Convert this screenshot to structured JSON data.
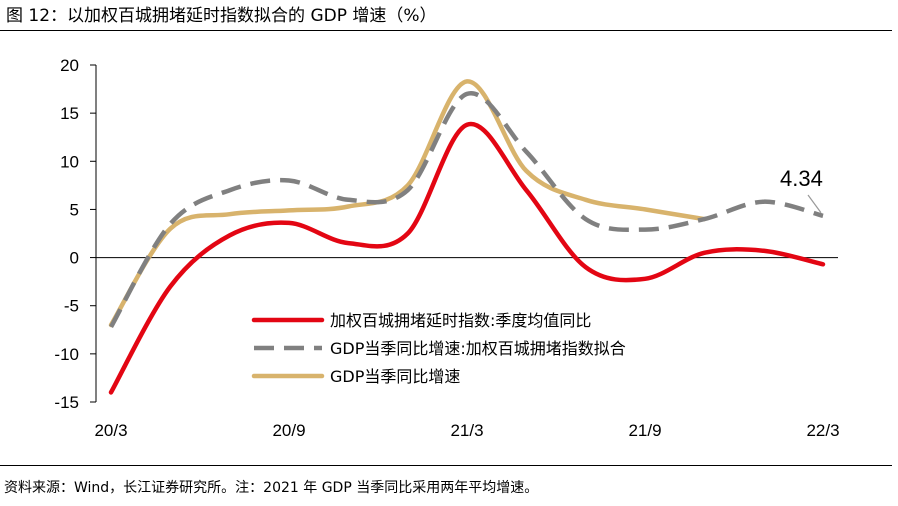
{
  "figure": {
    "title": "图 12：以加权百城拥堵延时指数拟合的 GDP 增速（%）",
    "source": "资料来源：Wind，长江证券研究所。注：2021 年 GDP 当季同比采用两年平均增速。"
  },
  "chart_data": {
    "type": "line",
    "title": "以加权百城拥堵延时指数拟合的 GDP 增速（%）",
    "xlabel": "",
    "ylabel": "",
    "ylim": [
      -15,
      20
    ],
    "yticks": [
      20,
      15,
      10,
      5,
      0,
      -5,
      -10,
      -15
    ],
    "ytick_labels": [
      "20",
      "15",
      "10",
      "5",
      "0",
      "-5",
      "-10",
      "-15"
    ],
    "x_tick_labels": [
      "20/3",
      "20/9",
      "21/3",
      "21/9",
      "22/3"
    ],
    "x_tick_index": [
      0,
      6,
      12,
      18,
      24
    ],
    "series": [
      {
        "name": "加权百城拥堵延时指数:季度均值同比",
        "color": "#e30613",
        "dash": "solid",
        "x": [
          0,
          2,
          4,
          6,
          8,
          10,
          12,
          14,
          16,
          18,
          20,
          22,
          24
        ],
        "values": [
          -14,
          -3,
          2.3,
          3.6,
          1.5,
          2.5,
          13.8,
          7,
          -1,
          -2.2,
          0.5,
          0.7,
          -0.7
        ]
      },
      {
        "name": "GDP当季同比增速:加权百城拥堵指数拟合",
        "color": "#808080",
        "dash": "dashed",
        "x": [
          0,
          2,
          4,
          6,
          8,
          10,
          12,
          14,
          16,
          18,
          20,
          22,
          24
        ],
        "values": [
          -7.2,
          3.5,
          7,
          8,
          6,
          7,
          17,
          11,
          4,
          2.9,
          4,
          5.8,
          4.34
        ]
      },
      {
        "name": "GDP当季同比增速",
        "color": "#d8b36c",
        "dash": "solid",
        "x": [
          0,
          2,
          4,
          6,
          8,
          10,
          12,
          14,
          16,
          18,
          20
        ],
        "values": [
          -7,
          3,
          4.5,
          4.9,
          5.3,
          7.5,
          18.3,
          9,
          6,
          5,
          4
        ]
      }
    ],
    "annotations": [
      {
        "text": "4.34",
        "x": 24,
        "y": 4.34
      }
    ],
    "legend": "center-right",
    "grid": false
  }
}
